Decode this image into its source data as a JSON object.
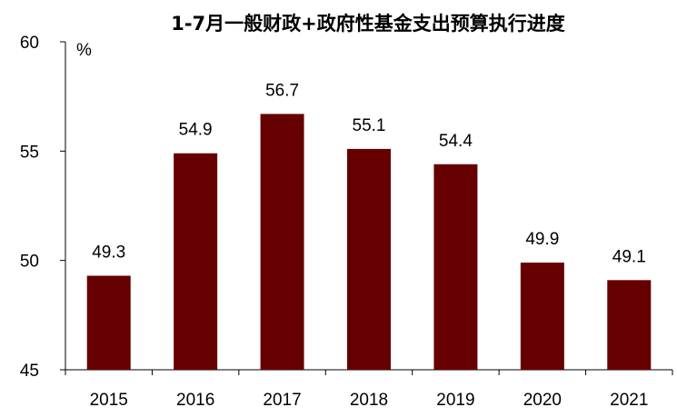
{
  "chart_data": {
    "type": "bar",
    "title": "1-7月一般财政+政府性基金支出预算执行进度",
    "unit_label": "%",
    "categories": [
      "2015",
      "2016",
      "2017",
      "2018",
      "2019",
      "2020",
      "2021"
    ],
    "values": [
      49.3,
      54.9,
      56.7,
      55.1,
      54.4,
      49.9,
      49.1
    ],
    "data_labels": [
      "49.3",
      "54.9",
      "56.7",
      "55.1",
      "54.4",
      "49.9",
      "49.1"
    ],
    "y_ticks": [
      "45",
      "50",
      "55",
      "60"
    ],
    "ylim": [
      45,
      60
    ],
    "bar_color": "#660000",
    "grid": false,
    "legend": "none"
  }
}
